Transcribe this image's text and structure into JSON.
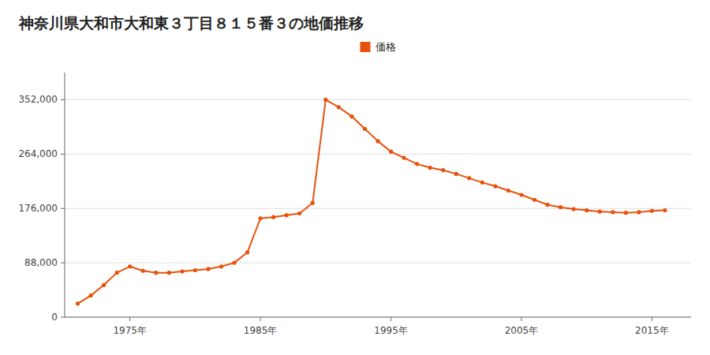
{
  "chart_data": {
    "type": "line",
    "title": "神奈川県大和市大和東３丁目８１５番３の地価推移",
    "x": [
      1971,
      1972,
      1973,
      1974,
      1975,
      1976,
      1977,
      1978,
      1979,
      1980,
      1981,
      1982,
      1983,
      1984,
      1985,
      1986,
      1987,
      1988,
      1989,
      1990,
      1991,
      1992,
      1993,
      1994,
      1995,
      1996,
      1997,
      1998,
      1999,
      2000,
      2001,
      2002,
      2003,
      2004,
      2005,
      2006,
      2007,
      2008,
      2009,
      2010,
      2011,
      2012,
      2013,
      2014,
      2015,
      2016
    ],
    "series": [
      {
        "name": "価格",
        "color": "#E8510A",
        "marker": "circle",
        "values": [
          22000,
          35000,
          52000,
          72000,
          82000,
          75000,
          72000,
          72000,
          74000,
          76000,
          78000,
          82000,
          88000,
          105000,
          160000,
          162000,
          165000,
          168000,
          185000,
          352000,
          340000,
          325000,
          305000,
          285000,
          268000,
          258000,
          248000,
          242000,
          238000,
          232000,
          225000,
          218000,
          212000,
          205000,
          198000,
          190000,
          182000,
          178000,
          175000,
          173000,
          171000,
          170000,
          169000,
          170000,
          172000,
          173000
        ]
      }
    ],
    "xlim": [
      1970,
      2018
    ],
    "ylim": [
      0,
      396000
    ],
    "xticks": [
      {
        "value": 1975,
        "label": "1975年"
      },
      {
        "value": 1985,
        "label": "1985年"
      },
      {
        "value": 1995,
        "label": "1995年"
      },
      {
        "value": 2005,
        "label": "2005年"
      },
      {
        "value": 2015,
        "label": "2015年"
      }
    ],
    "yticks": [
      0,
      {
        "value": 88000,
        "label": "88,000"
      },
      {
        "value": 176000,
        "label": "176,000"
      },
      {
        "value": 264000,
        "label": "264,000"
      },
      {
        "value": 352000,
        "label": "352,000"
      }
    ],
    "grid": true,
    "legend": "top"
  }
}
